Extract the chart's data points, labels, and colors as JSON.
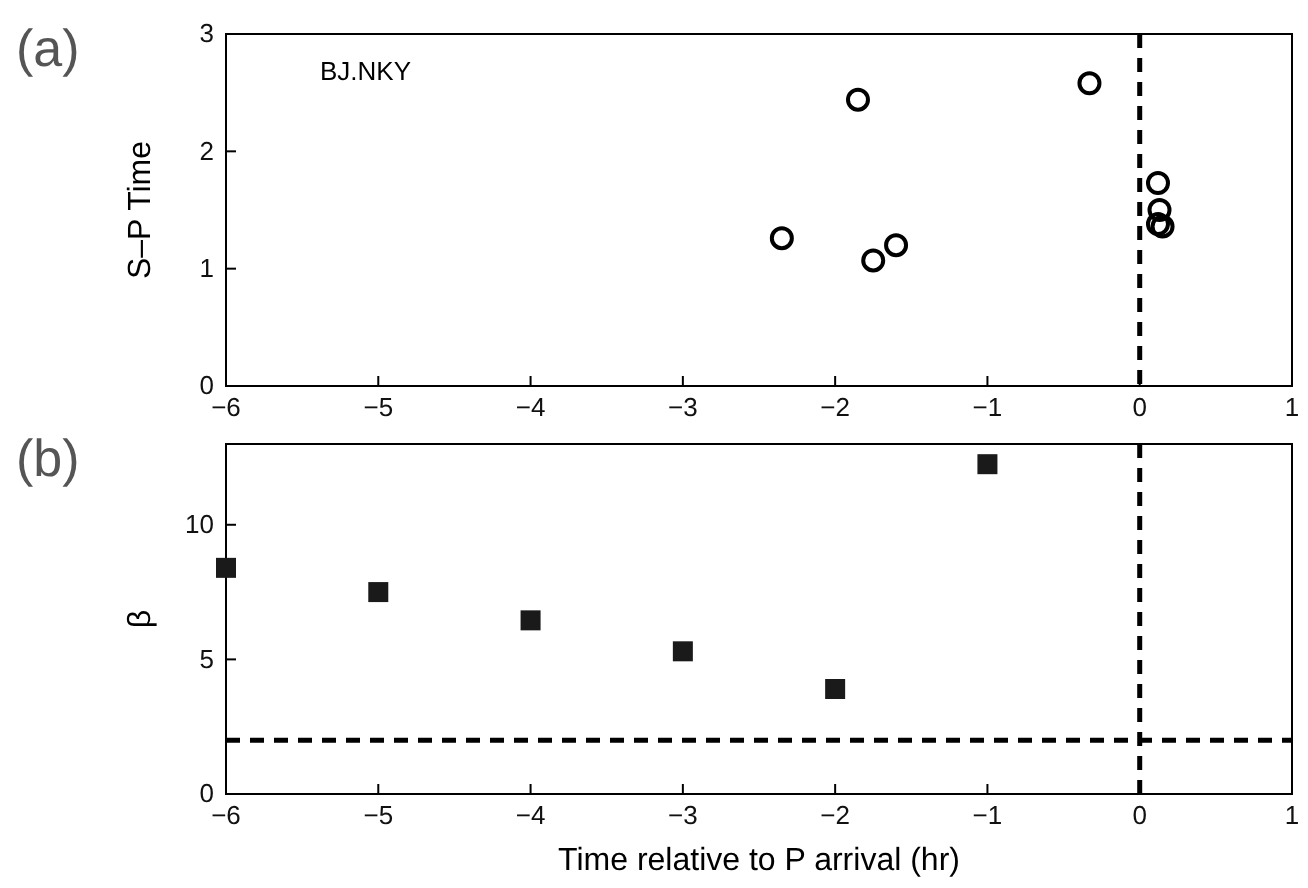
{
  "chart_data": [
    {
      "type": "scatter",
      "title": "(a)",
      "ylabel": "S–P  Time",
      "annotations": [
        "BJ.NKY"
      ],
      "marker": "circle",
      "x": [
        -2.35,
        -1.85,
        -1.75,
        -1.6,
        -0.33,
        0.12,
        0.13,
        0.12,
        0.15
      ],
      "values": [
        1.26,
        2.44,
        1.07,
        1.2,
        2.58,
        1.73,
        1.5,
        1.38,
        1.36
      ],
      "color": "#000000",
      "xlim": [
        -6,
        1
      ],
      "xticks": [
        -6,
        -5,
        -4,
        -3,
        -2,
        -1,
        0,
        1
      ],
      "ylim": [
        0,
        3
      ],
      "yticks": [
        0,
        1,
        2,
        3
      ],
      "ref_lines": [
        {
          "axis": "x",
          "value": 0,
          "line_style": "dashed",
          "color": "#000000"
        }
      ]
    },
    {
      "type": "scatter",
      "title": "(b)",
      "ylabel": "β",
      "xlabel": "Time relative to P arrival (hr)",
      "marker": "square",
      "x": [
        -6,
        -5,
        -4,
        -3,
        -2,
        -1
      ],
      "values": [
        8.4,
        7.5,
        6.45,
        5.3,
        3.9,
        12.25
      ],
      "color": "#1a1a1a",
      "xlim": [
        -6,
        1
      ],
      "xticks": [
        -6,
        -5,
        -4,
        -3,
        -2,
        -1,
        0,
        1
      ],
      "ylim": [
        0,
        13
      ],
      "yticks": [
        0,
        5,
        10
      ],
      "ref_lines": [
        {
          "axis": "x",
          "value": 0,
          "line_style": "dashed",
          "color": "#000000"
        },
        {
          "axis": "y",
          "value": 2,
          "line_style": "dashed",
          "color": "#000000"
        }
      ]
    }
  ]
}
